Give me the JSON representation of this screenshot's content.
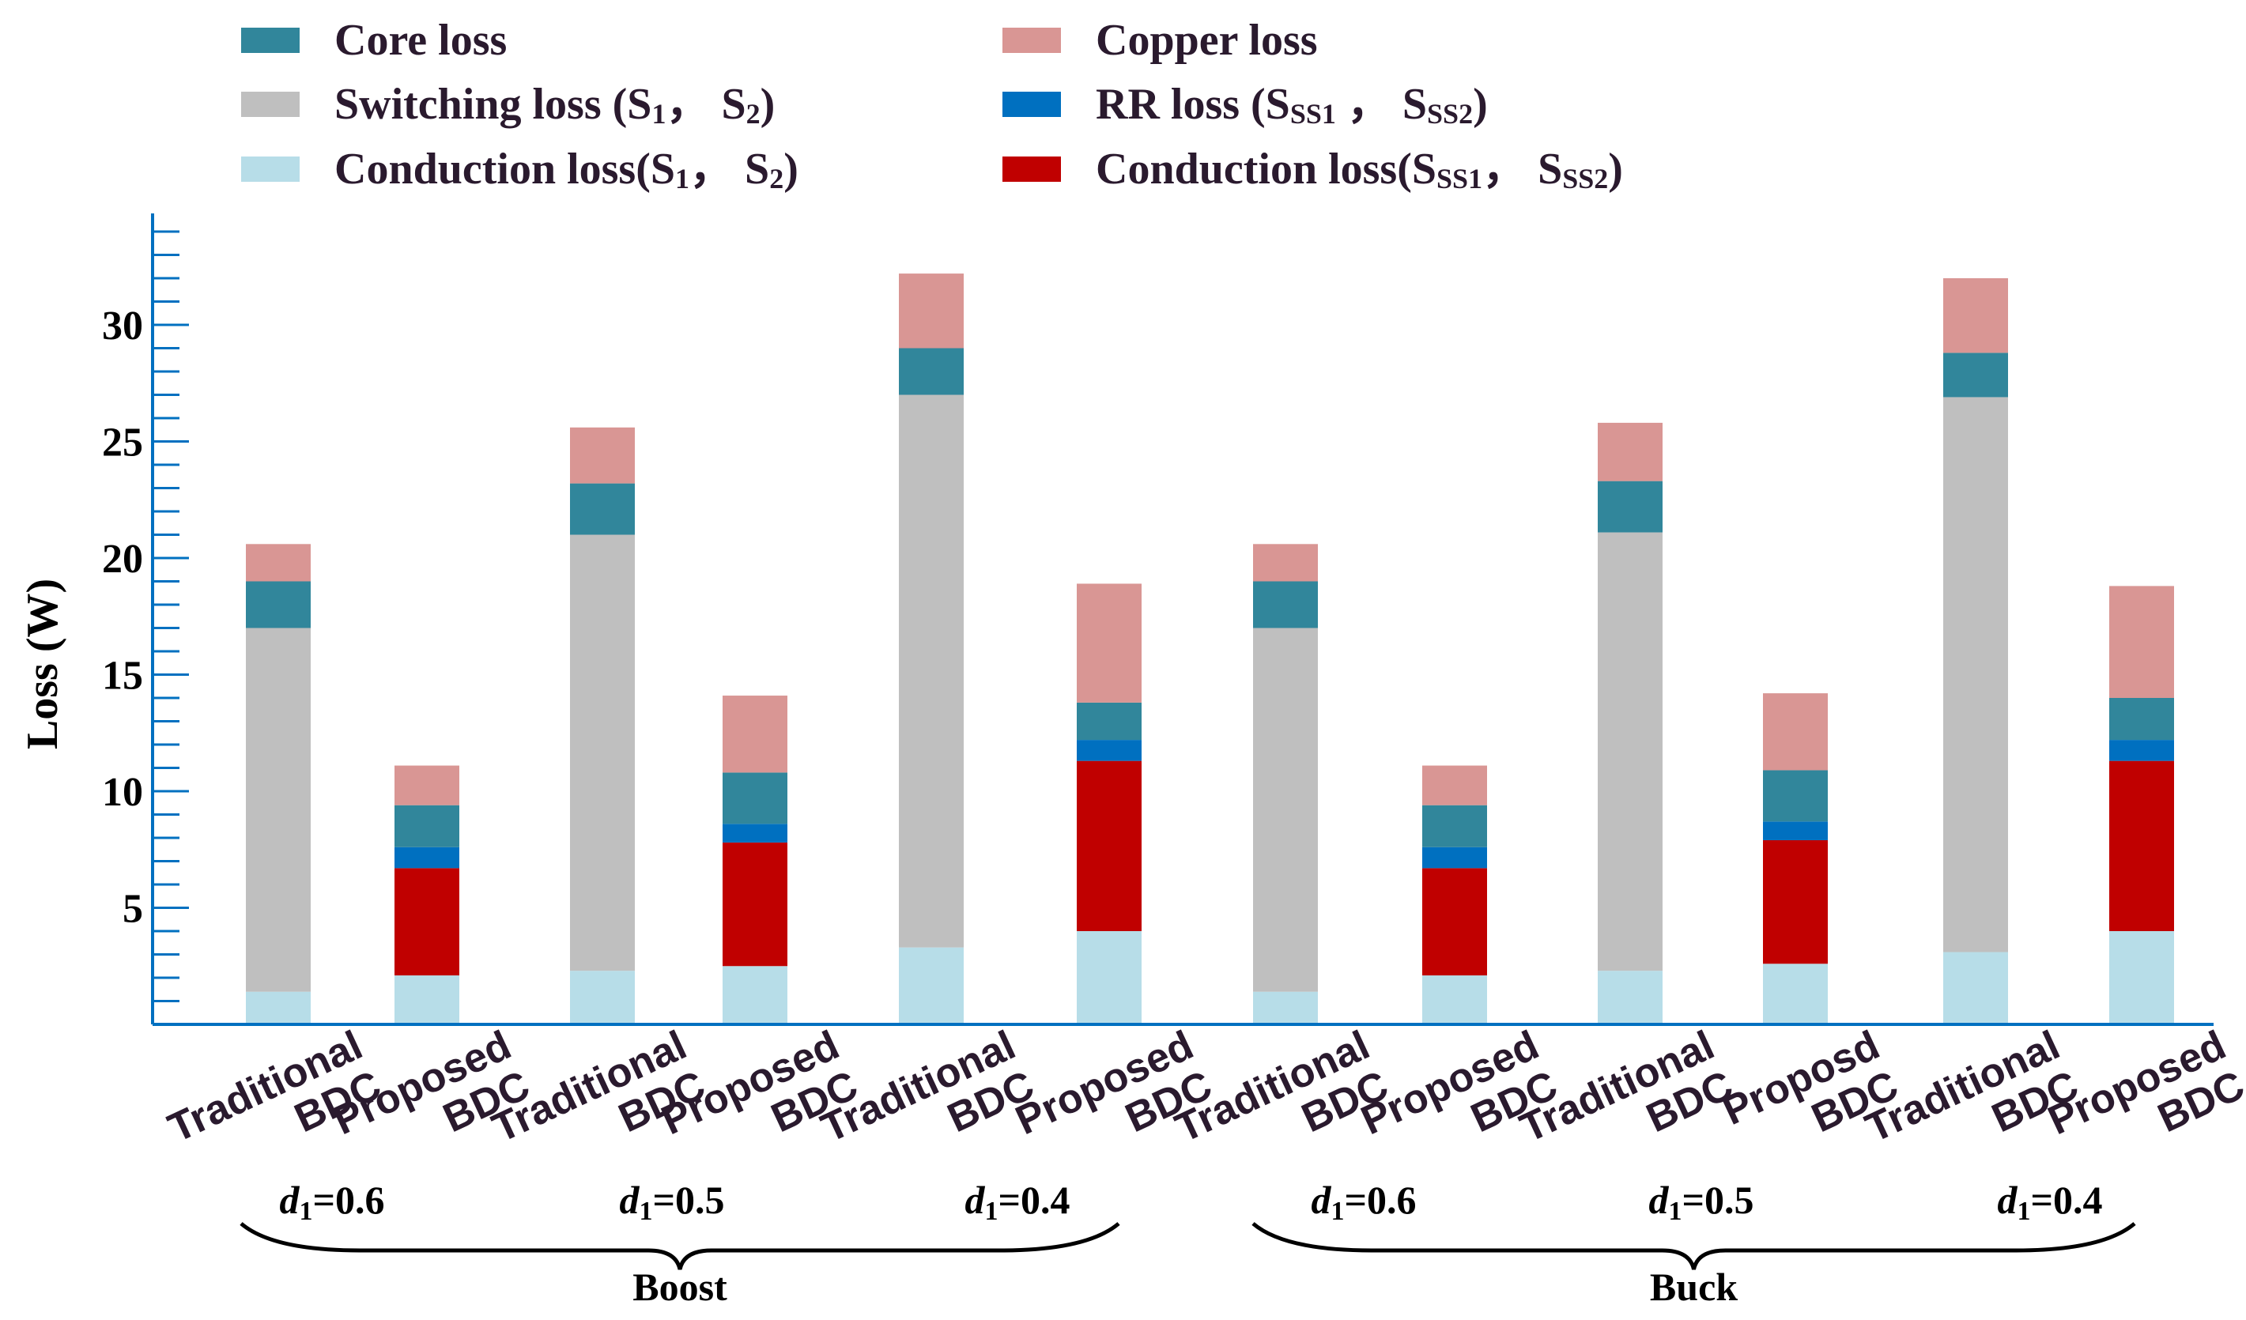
{
  "chart_data": {
    "type": "bar",
    "stacked": true,
    "ylabel": "Loss (W)",
    "ylim": [
      0,
      35
    ],
    "yticks": [
      5,
      10,
      15,
      20,
      25,
      30
    ],
    "categories": [
      {
        "line1": "Traditional",
        "line2": "BDC"
      },
      {
        "line1": "Proposed",
        "line2": "BDC"
      },
      {
        "line1": "Traditional",
        "line2": "BDC"
      },
      {
        "line1": "Proposed",
        "line2": "BDC"
      },
      {
        "line1": "Traditional",
        "line2": "BDC"
      },
      {
        "line1": "Proposed",
        "line2": "BDC"
      },
      {
        "line1": "Traditional",
        "line2": "BDC"
      },
      {
        "line1": "Proposed",
        "line2": "BDC"
      },
      {
        "line1": "Traditional",
        "line2": "BDC"
      },
      {
        "line1": "Proposd",
        "line2": "BDC"
      },
      {
        "line1": "Traditional",
        "line2": "BDC"
      },
      {
        "line1": "Proposed",
        "line2": "BDC"
      }
    ],
    "duty_labels": [
      {
        "var": "d",
        "sub": "1",
        "value": "=0.6"
      },
      {
        "var": "d",
        "sub": "1",
        "value": "=0.5"
      },
      {
        "var": "d",
        "sub": "1",
        "value": "=0.4"
      },
      {
        "var": "d",
        "sub": "1",
        "value": "=0.6"
      },
      {
        "var": "d",
        "sub": "1",
        "value": "=0.5"
      },
      {
        "var": "d",
        "sub": "1",
        "value": "=0.4"
      }
    ],
    "groups": [
      "Boost",
      "Buck"
    ],
    "legend": [
      {
        "id": "core",
        "parts": [
          {
            "t": "Core loss"
          }
        ]
      },
      {
        "id": "copper",
        "parts": [
          {
            "t": "Copper loss"
          }
        ]
      },
      {
        "id": "switching",
        "parts": [
          {
            "t": "Switching loss (S"
          },
          {
            "t": "1",
            "sub": true
          },
          {
            "t": "， S"
          },
          {
            "t": "2",
            "sub": true
          },
          {
            "t": ")"
          }
        ]
      },
      {
        "id": "rr",
        "parts": [
          {
            "t": "RR loss (S"
          },
          {
            "t": "SS1",
            "sub": true
          },
          {
            "t": " ， S"
          },
          {
            "t": "SS2",
            "sub": true
          },
          {
            "t": ")"
          }
        ]
      },
      {
        "id": "cond_s",
        "parts": [
          {
            "t": "Conduction loss(S"
          },
          {
            "t": "1",
            "sub": true
          },
          {
            "t": "， S"
          },
          {
            "t": "2",
            "sub": true
          },
          {
            "t": ")"
          }
        ]
      },
      {
        "id": "cond_ss",
        "parts": [
          {
            "t": "Conduction loss(S"
          },
          {
            "t": "SS1",
            "sub": true
          },
          {
            "t": "， S"
          },
          {
            "t": "SS2",
            "sub": true
          },
          {
            "t": ")"
          }
        ]
      }
    ],
    "stack_order": [
      "cond_s",
      "cond_ss",
      "rr",
      "switching",
      "core",
      "copper"
    ],
    "colors": {
      "core": "#31869b",
      "copper": "#d99694",
      "switching": "#bfbfbf",
      "rr": "#0070c0",
      "cond_s": "#b7dde8",
      "cond_ss": "#c00000",
      "axis": "#0070c0"
    },
    "series": {
      "cond_s": [
        1.4,
        2.1,
        2.3,
        2.5,
        3.3,
        4.0,
        1.4,
        2.1,
        2.3,
        2.6,
        3.1,
        4.0
      ],
      "cond_ss": [
        0,
        4.6,
        0,
        5.3,
        0,
        7.3,
        0,
        4.6,
        0,
        5.3,
        0,
        7.3
      ],
      "rr": [
        0,
        0.9,
        0,
        0.8,
        0,
        0.9,
        0,
        0.9,
        0,
        0.8,
        0,
        0.9
      ],
      "switching": [
        15.6,
        0,
        18.7,
        0,
        23.7,
        0,
        15.6,
        0,
        18.8,
        0,
        23.8,
        0
      ],
      "core": [
        2.0,
        1.8,
        2.2,
        2.2,
        2.0,
        1.6,
        2.0,
        1.8,
        2.2,
        2.2,
        1.9,
        1.8
      ],
      "copper": [
        1.6,
        1.7,
        2.4,
        3.3,
        3.2,
        5.1,
        1.6,
        1.7,
        2.5,
        3.3,
        3.2,
        4.8
      ]
    }
  }
}
